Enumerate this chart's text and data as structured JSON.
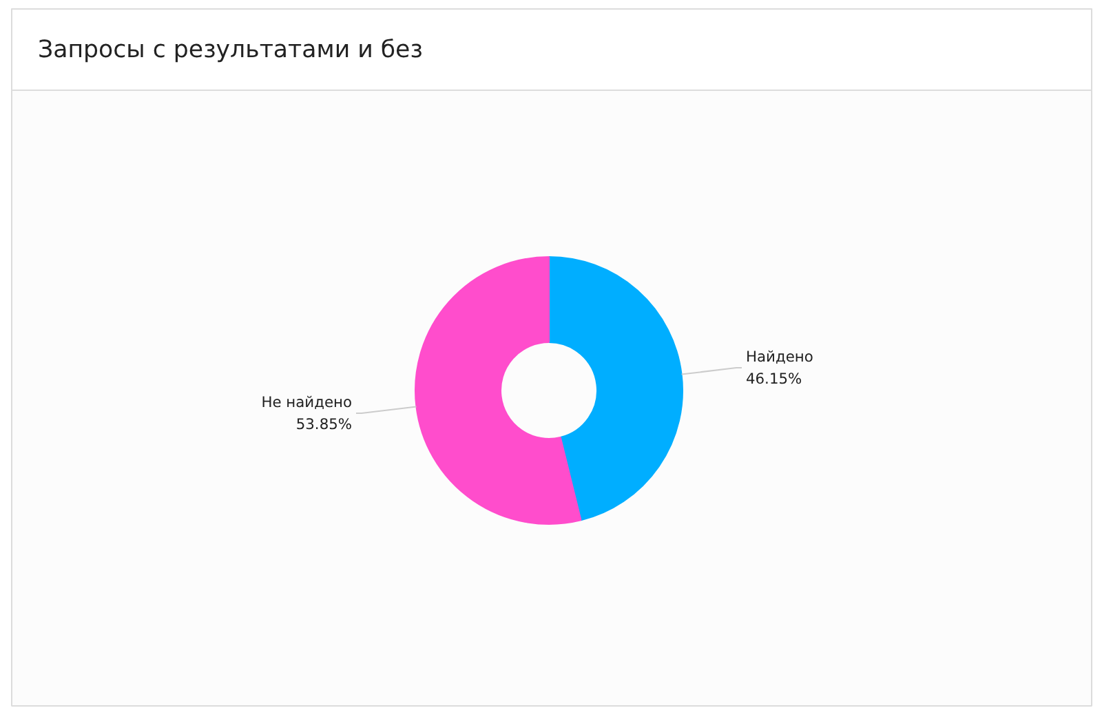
{
  "chart_data": {
    "type": "donut",
    "title": "Запросы с результатами и без",
    "categories": [
      "Найдено",
      "Не найдено"
    ],
    "values": [
      46.15,
      53.85
    ],
    "colors": [
      "#00aeff",
      "#ff4dcc"
    ],
    "value_labels": [
      "46.15%",
      "53.85%"
    ]
  }
}
